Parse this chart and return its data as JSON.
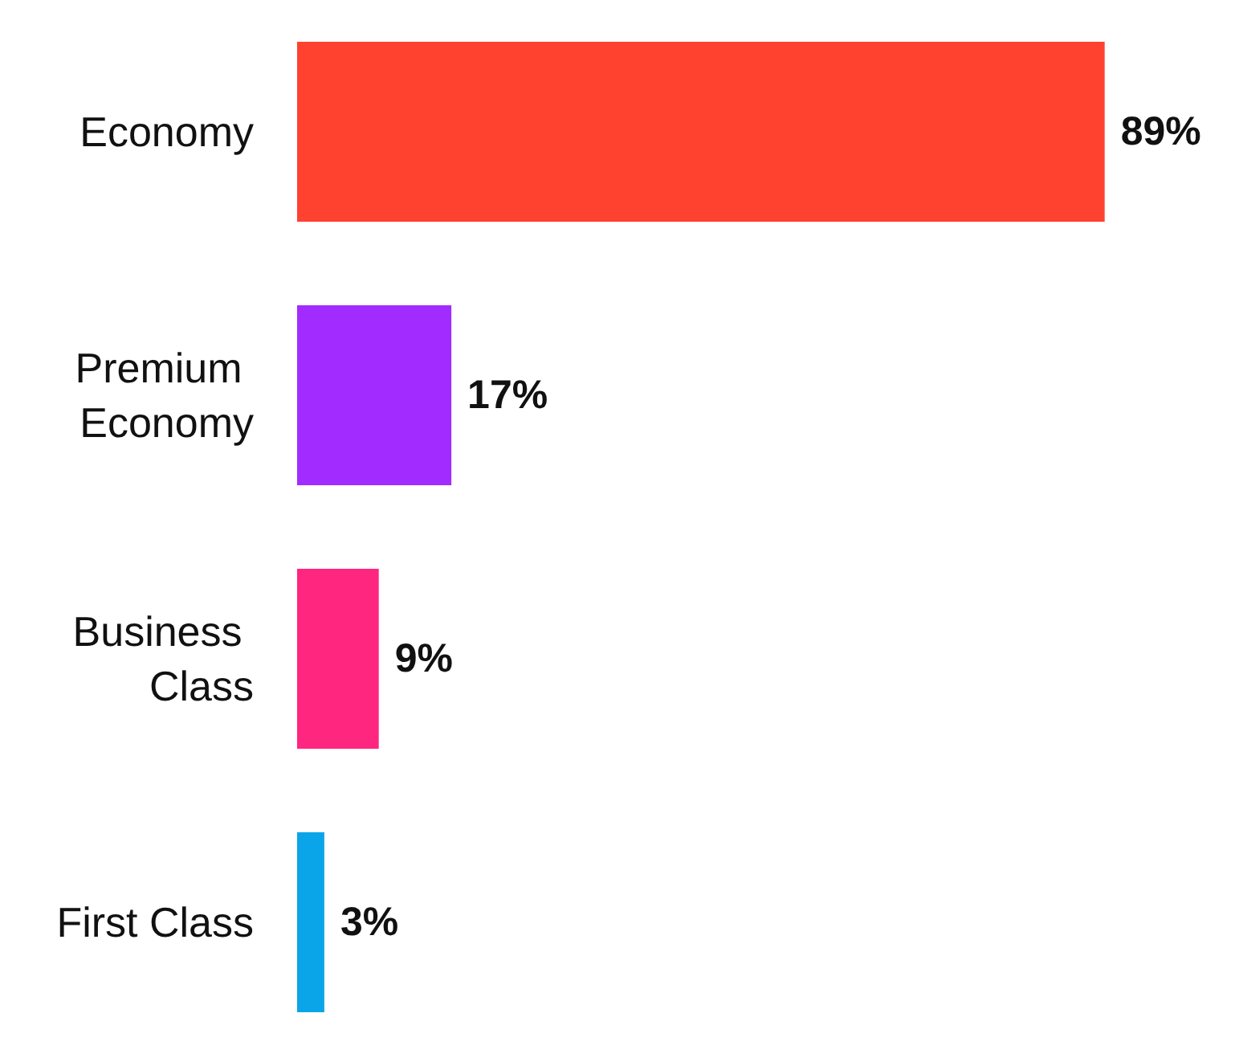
{
  "chart_data": {
    "type": "bar",
    "orientation": "horizontal",
    "categories": [
      "Economy",
      "Premium Economy",
      "Business Class",
      "First Class"
    ],
    "values": [
      89,
      17,
      9,
      3
    ],
    "colors": [
      "#ff4230",
      "#a22bff",
      "#ff2680",
      "#0aa5e8"
    ],
    "value_labels": [
      "89%",
      "17%",
      "9%",
      "3%"
    ]
  }
}
